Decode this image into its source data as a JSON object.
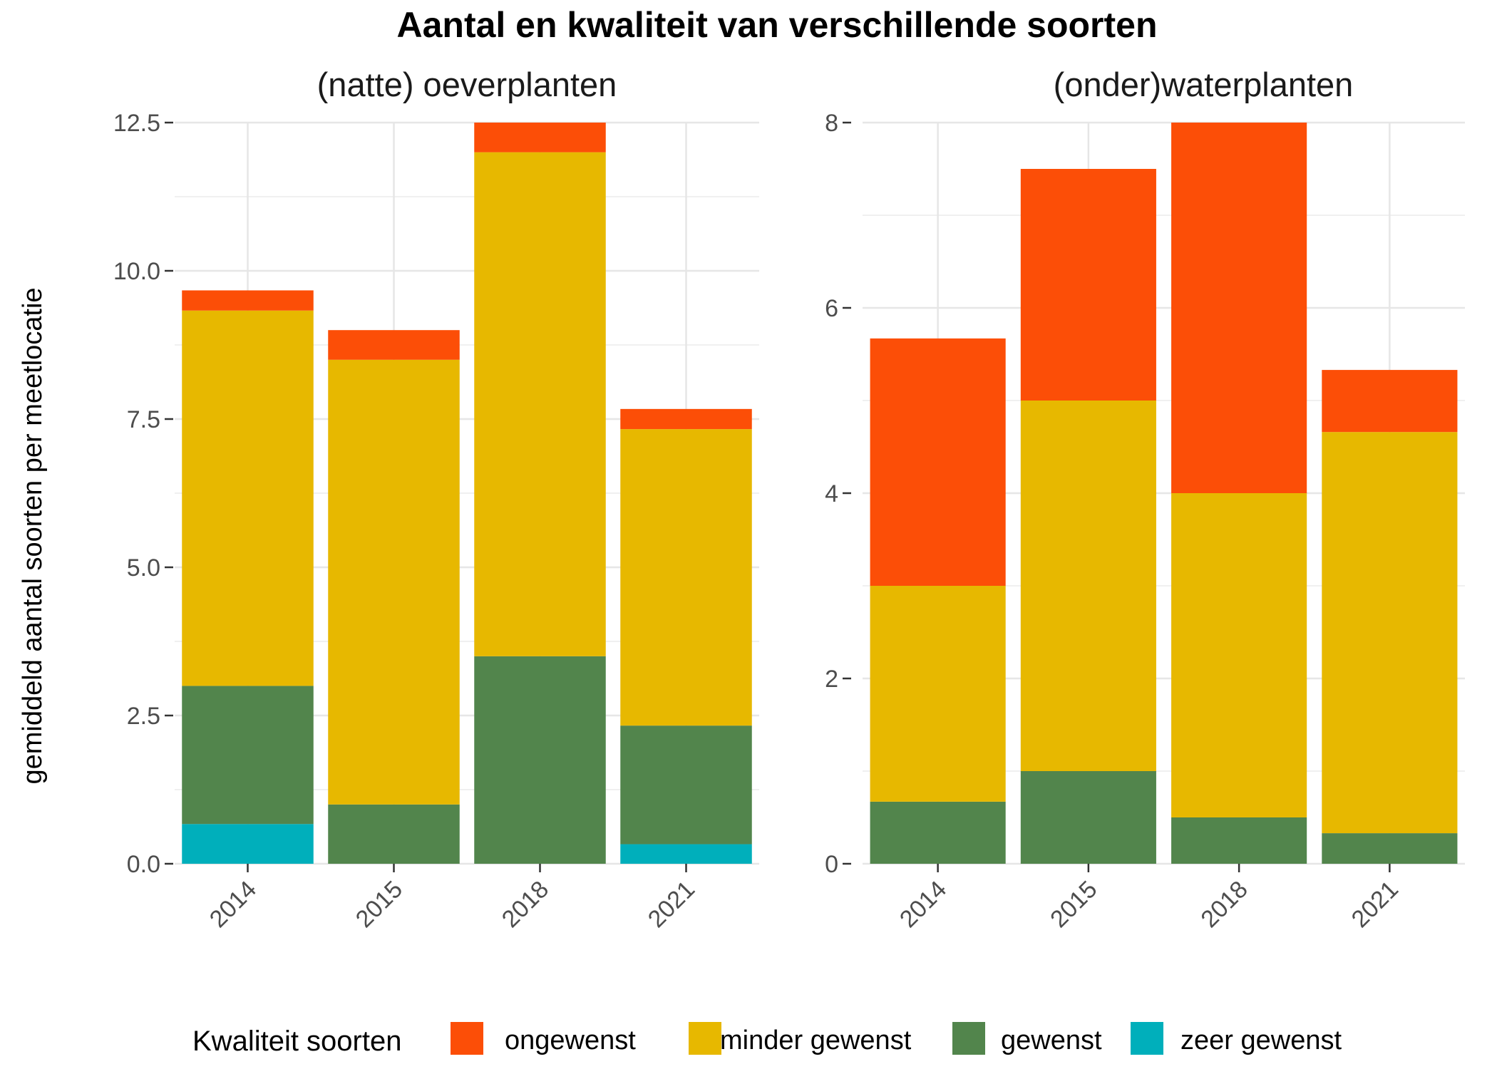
{
  "title": "Aantal en kwaliteit van verschillende soorten",
  "ylabel": "gemiddeld aantal soorten per meetlocatie",
  "legend": {
    "title": "Kwaliteit soorten",
    "items": [
      {
        "label": "ongewenst",
        "color": "#FC4E07"
      },
      {
        "label": "minder gewenst",
        "color": "#E7B800"
      },
      {
        "label": "gewenst",
        "color": "#52854C"
      },
      {
        "label": "zeer gewenst",
        "color": "#00AFBB"
      }
    ]
  },
  "chart_data": [
    {
      "type": "bar",
      "stacked": true,
      "title": "(natte) oeverplanten",
      "categories": [
        "2014",
        "2015",
        "2018",
        "2021"
      ],
      "ylim": [
        0,
        12.5
      ],
      "yticks": [
        0,
        2.5,
        5,
        7.5,
        10,
        12.5
      ],
      "ytick_labels": [
        "0.0",
        "2.5",
        "5.0",
        "7.5",
        "10.0",
        "12.5"
      ],
      "series": [
        {
          "name": "zeer gewenst",
          "color": "#00AFBB",
          "values": [
            0.67,
            0,
            0,
            0.33
          ]
        },
        {
          "name": "gewenst",
          "color": "#52854C",
          "values": [
            2.33,
            1.0,
            3.5,
            2.0
          ]
        },
        {
          "name": "minder gewenst",
          "color": "#E7B800",
          "values": [
            6.33,
            7.5,
            8.5,
            5.0
          ]
        },
        {
          "name": "ongewenst",
          "color": "#FC4E07",
          "values": [
            0.34,
            0.5,
            0.5,
            0.34
          ]
        }
      ],
      "grid": true
    },
    {
      "type": "bar",
      "stacked": true,
      "title": "(onder)waterplanten",
      "categories": [
        "2014",
        "2015",
        "2018",
        "2021"
      ],
      "ylim": [
        0,
        8
      ],
      "yticks": [
        0,
        2,
        4,
        6,
        8
      ],
      "ytick_labels": [
        "0",
        "2",
        "4",
        "6",
        "8"
      ],
      "series": [
        {
          "name": "zeer gewenst",
          "color": "#00AFBB",
          "values": [
            0,
            0,
            0,
            0
          ]
        },
        {
          "name": "gewenst",
          "color": "#52854C",
          "values": [
            0.67,
            1.0,
            0.5,
            0.33
          ]
        },
        {
          "name": "minder gewenst",
          "color": "#E7B800",
          "values": [
            2.33,
            4.0,
            3.5,
            4.33
          ]
        },
        {
          "name": "ongewenst",
          "color": "#FC4E07",
          "values": [
            2.67,
            2.5,
            4.0,
            0.67
          ]
        }
      ],
      "grid": true
    }
  ]
}
